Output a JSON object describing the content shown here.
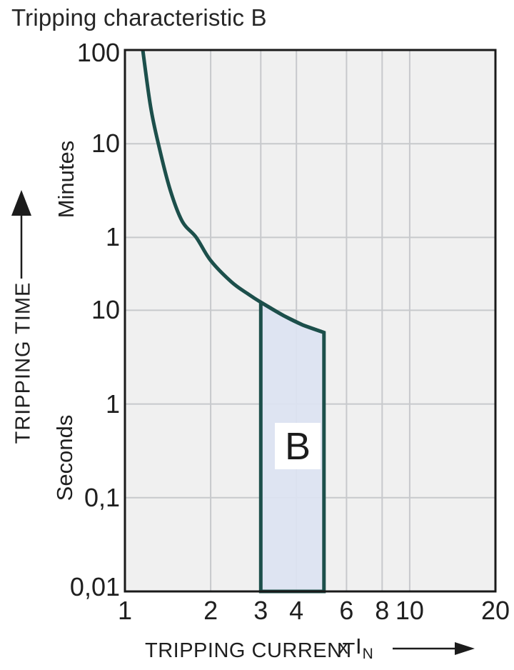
{
  "chart_data": {
    "type": "line",
    "title": "Tripping characteristic B",
    "legend": "none",
    "grid": "on",
    "x_axis": {
      "label": "TRIPPING CURRENT",
      "multiplier": {
        "x": "x",
        "base": "I",
        "sub": "N"
      },
      "scale": "log",
      "range": [
        1,
        20
      ],
      "ticks": [
        {
          "v": 1,
          "label": "1"
        },
        {
          "v": 2,
          "label": "2"
        },
        {
          "v": 3,
          "label": "3"
        },
        {
          "v": 4,
          "label": "4"
        },
        {
          "v": 6,
          "label": "6"
        },
        {
          "v": 8,
          "label": "8"
        },
        {
          "v": 10,
          "label": "10"
        },
        {
          "v": 20,
          "label": "20"
        }
      ],
      "gridlines": [
        2,
        3,
        4,
        6,
        8,
        10
      ]
    },
    "y_axis": {
      "label": "TRIPPING TIME",
      "unit_upper": "Minutes",
      "unit_lower": "Seconds",
      "scale": "log",
      "range_seconds": [
        0.01,
        6000
      ],
      "ticks": [
        {
          "t": 6000,
          "label": "100",
          "unit": "Minutes"
        },
        {
          "t": 600,
          "label": "10",
          "unit": "Minutes"
        },
        {
          "t": 60,
          "label": "1",
          "unit": "Minutes"
        },
        {
          "t": 10,
          "label": "10",
          "unit": "Seconds"
        },
        {
          "t": 1,
          "label": "1",
          "unit": "Seconds"
        },
        {
          "t": 0.1,
          "label": "0,1",
          "unit": "Seconds"
        },
        {
          "t": 0.01,
          "label": "0,01",
          "unit": "Seconds"
        }
      ],
      "gridlines": [
        600,
        60,
        10,
        1,
        0.1
      ]
    },
    "series": [
      {
        "name": "thermal-trip-curve",
        "points_x_in_t_seconds": [
          [
            1.155,
            6000
          ],
          [
            1.23,
            1500
          ],
          [
            1.31,
            600
          ],
          [
            1.44,
            195
          ],
          [
            1.59,
            89
          ],
          [
            1.78,
            60
          ],
          [
            2.0,
            34
          ],
          [
            2.37,
            20
          ],
          [
            2.7,
            15
          ],
          [
            3.0,
            12.2
          ],
          [
            3.6,
            8.8
          ],
          [
            4.2,
            7.0
          ],
          [
            5.0,
            5.8
          ]
        ]
      }
    ],
    "region": {
      "label": "B",
      "x_range": [
        3,
        5
      ],
      "t_bottom": 0.01,
      "top_edge": [
        [
          3,
          12.2
        ],
        [
          3.6,
          8.8
        ],
        [
          4.2,
          7.0
        ],
        [
          5,
          5.8
        ]
      ]
    },
    "colors": {
      "curve": "#1c4f4b",
      "region_fill": "#dce3f2",
      "plot_bg": "#f0f0f0",
      "grid": "#c7c9cc",
      "border": "#1a1a1a",
      "text": "#1f1f1f",
      "region_label_bg": "#ffffff"
    }
  }
}
